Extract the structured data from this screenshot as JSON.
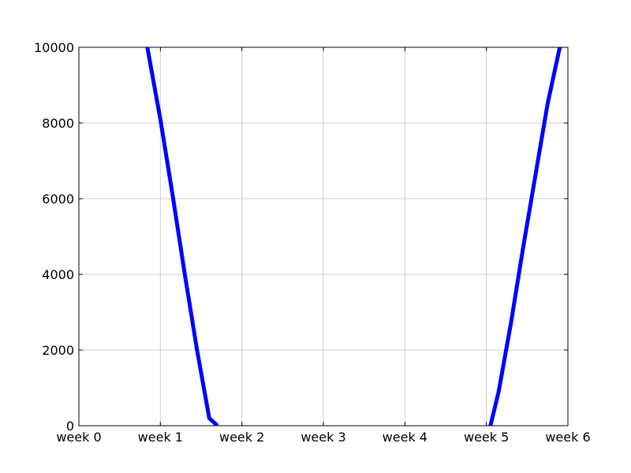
{
  "chart_data": {
    "type": "line",
    "title": "",
    "xlabel": "",
    "ylabel": "",
    "xlim": [
      0,
      6
    ],
    "ylim": [
      0,
      10000
    ],
    "x_ticks": [
      0,
      1,
      2,
      3,
      4,
      5,
      6
    ],
    "x_tick_labels": [
      "week 0",
      "week 1",
      "week 2",
      "week 3",
      "week 4",
      "week 5",
      "week 6"
    ],
    "y_ticks": [
      0,
      2000,
      4000,
      6000,
      8000,
      10000
    ],
    "y_tick_labels": [
      "0",
      "2000",
      "4000",
      "6000",
      "8000",
      "10000"
    ],
    "grid": true,
    "legend": "none",
    "series": [
      {
        "color": "#0000ff",
        "x": [
          0.84,
          1.0,
          1.15,
          1.3,
          1.45,
          1.6,
          1.7
        ],
        "y": [
          10000,
          8100,
          6100,
          4000,
          2000,
          200,
          0
        ]
      },
      {
        "color": "#0000ff",
        "x": [
          5.05,
          5.15,
          5.3,
          5.45,
          5.6,
          5.75,
          5.9
        ],
        "y": [
          0,
          900,
          2700,
          4700,
          6600,
          8500,
          10000
        ]
      }
    ]
  }
}
